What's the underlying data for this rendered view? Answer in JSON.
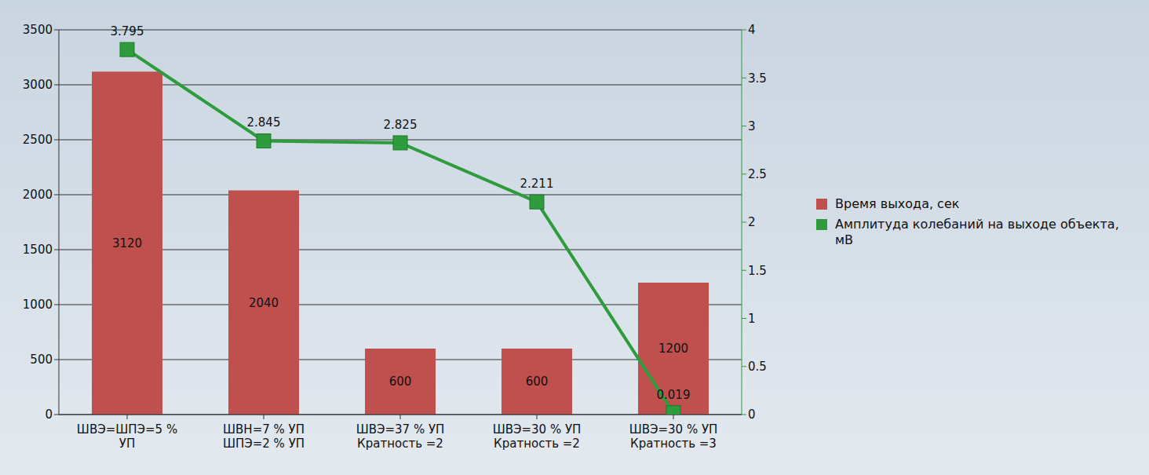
{
  "chart_data": {
    "type": "bar",
    "categories": [
      "ШВЭ=ШПЭ=5 % УП",
      "ШВН=7 % УП ШПЭ=2 % УП",
      "ШВЭ=37 % УП Кратность =2",
      "ШВЭ=30 % УП Кратность =2",
      "ШВЭ=30 % УП Кратность =3"
    ],
    "series": [
      {
        "name": "Время выхода, сек",
        "type": "bar",
        "color": "#c0504d",
        "values": [
          3120,
          2040,
          600,
          600,
          1200
        ]
      },
      {
        "name": "Амплитуда колебаний на выходе объекта, мВ",
        "type": "line",
        "axis": "y2",
        "color": "#2e9b3c",
        "marker": "square",
        "line_style": "solid",
        "values": [
          3.795,
          2.845,
          2.825,
          2.211,
          0.019
        ]
      }
    ],
    "ylim": [
      0,
      3500
    ],
    "yticks": [
      0,
      500,
      1000,
      1500,
      2000,
      2500,
      3000,
      3500
    ],
    "y2lim": [
      0,
      4
    ],
    "y2ticks": [
      0,
      0.5,
      1,
      1.5,
      2,
      2.5,
      3,
      3.5,
      4
    ],
    "grid": true,
    "data_labels": true,
    "legend": "right"
  }
}
